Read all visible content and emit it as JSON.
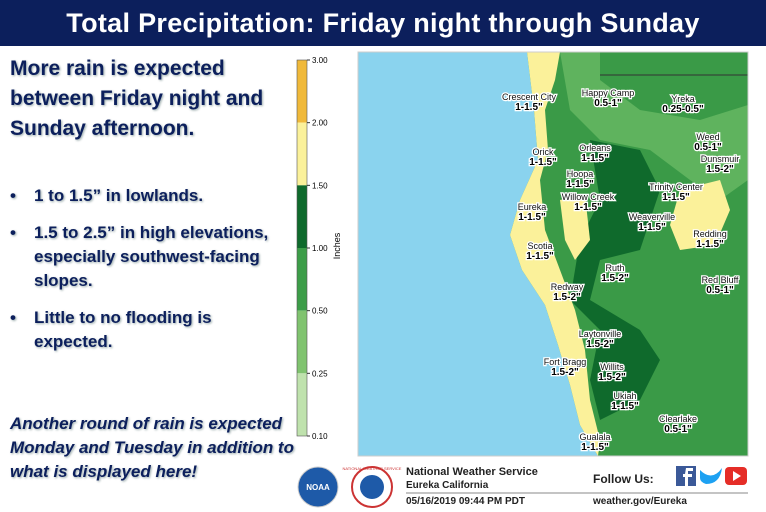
{
  "header": {
    "title": "Total Precipitation: Friday night through Sunday"
  },
  "summary": {
    "headline": "More rain is expected between Friday night and Sunday afternoon.",
    "bullets": [
      "1 to 1.5” in lowlands.",
      "1.5 to 2.5” in high elevations, especially southwest-facing slopes.",
      "Little to no flooding is expected."
    ],
    "outlook": "Another round  of rain is expected Monday and Tuesday in addition to what is displayed here!"
  },
  "legend": {
    "axis_label": "Inches",
    "ticks": [
      {
        "value": 3,
        "label": "3.00"
      },
      {
        "value": 2,
        "label": "2.00"
      },
      {
        "value": 1.5,
        "label": "1.50"
      },
      {
        "value": 1,
        "label": "1.00"
      },
      {
        "value": 0.5,
        "label": "0.50"
      },
      {
        "value": 0.25,
        "label": "0.25"
      },
      {
        "value": 0.1,
        "label": "0.10"
      }
    ],
    "colors": [
      "#f0b93a",
      "#fbf19a",
      "#0f6a2c",
      "#3c9d48",
      "#80c36f",
      "#bfe2ad"
    ]
  },
  "map": {
    "places": [
      {
        "name": "Crescent City",
        "amount": "1-1.5\""
      },
      {
        "name": "Happy Camp",
        "amount": "0.5-1\""
      },
      {
        "name": "Yreka",
        "amount": "0.25-0.5\""
      },
      {
        "name": "Weed",
        "amount": "0.5-1\""
      },
      {
        "name": "Orick",
        "amount": "1-1.5\""
      },
      {
        "name": "Orleans",
        "amount": "1-1.5\""
      },
      {
        "name": "Dunsmuir",
        "amount": "1.5-2\""
      },
      {
        "name": "Hoopa",
        "amount": "1-1.5\""
      },
      {
        "name": "Trinity Center",
        "amount": "1-1.5\""
      },
      {
        "name": "Willow Creek",
        "amount": "1-1.5\""
      },
      {
        "name": "Eureka",
        "amount": "1-1.5\""
      },
      {
        "name": "Weaverville",
        "amount": "1-1.5\""
      },
      {
        "name": "Redding",
        "amount": "1-1.5\""
      },
      {
        "name": "Scotia",
        "amount": "1-1.5\""
      },
      {
        "name": "Ruth",
        "amount": "1.5-2\""
      },
      {
        "name": "Red Bluff",
        "amount": "0.5-1\""
      },
      {
        "name": "Redway",
        "amount": "1.5-2\""
      },
      {
        "name": "Laytonville",
        "amount": "1.5-2\""
      },
      {
        "name": "Fort Bragg",
        "amount": "1.5-2\""
      },
      {
        "name": "Willits",
        "amount": "1.5-2\""
      },
      {
        "name": "Ukiah",
        "amount": "1-1.5\""
      },
      {
        "name": "Clearlake",
        "amount": "0.5-1\""
      },
      {
        "name": "Gualala",
        "amount": "1-1.5\""
      }
    ]
  },
  "footer": {
    "logo_noaa": "NOAA",
    "logo_nws": "NATIONAL WEATHER SERVICE",
    "office": "National Weather Service",
    "location": "Eureka California",
    "timestamp": "05/16/2019 09:44 PM PDT",
    "follow": "Follow Us:",
    "website": "weather.gov/Eureka"
  }
}
